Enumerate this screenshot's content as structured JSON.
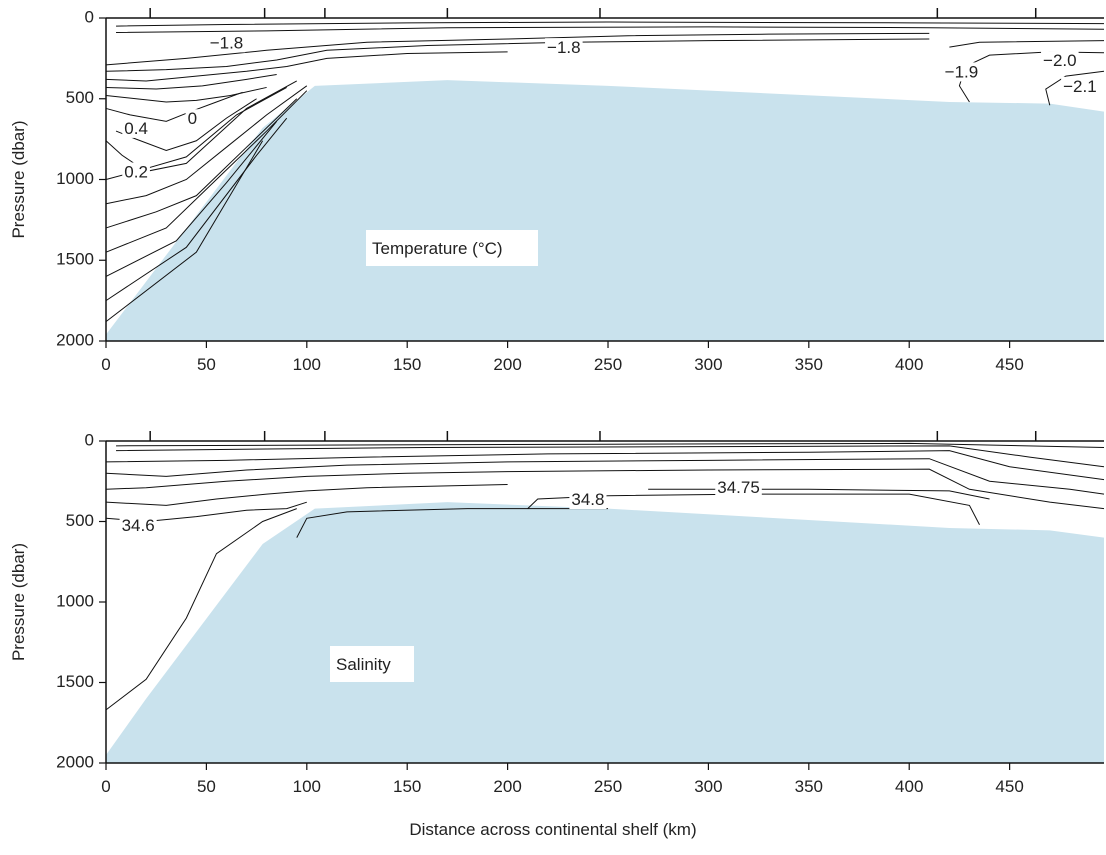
{
  "chart_data": [
    {
      "type": "contour",
      "panel_label": "Temperature (°C)",
      "xlabel": "",
      "ylabel": "Pressure (dbar)",
      "xlim": [
        0,
        497
      ],
      "ylim": [
        2000,
        0
      ],
      "x_ticks": [
        0,
        50,
        100,
        150,
        200,
        250,
        300,
        350,
        400,
        450
      ],
      "y_ticks": [
        0,
        500,
        1000,
        1500,
        2000
      ],
      "station_ticks": [
        22,
        79,
        109,
        170,
        246,
        414,
        463
      ],
      "bathymetry_color": "#c9e2ed",
      "bathymetry": [
        [
          0,
          1960
        ],
        [
          78,
          680
        ],
        [
          104,
          420
        ],
        [
          170,
          385
        ],
        [
          250,
          420
        ],
        [
          420,
          520
        ],
        [
          470,
          530
        ],
        [
          497,
          580
        ]
      ],
      "contour_labels": [
        {
          "text": "−1.8",
          "x": 60,
          "y": 160
        },
        {
          "text": "−1.8",
          "x": 228,
          "y": 190
        },
        {
          "text": "−1.9",
          "x": 426,
          "y": 340
        },
        {
          "text": "−2.0",
          "x": 475,
          "y": 270
        },
        {
          "text": "−2.1",
          "x": 485,
          "y": 430
        },
        {
          "text": "0.4",
          "x": 15,
          "y": 690
        },
        {
          "text": "0",
          "x": 43,
          "y": 630
        },
        {
          "text": "0.2",
          "x": 15,
          "y": 960
        }
      ],
      "contours": [
        [
          [
            0,
            290
          ],
          [
            40,
            250
          ],
          [
            80,
            200
          ],
          [
            130,
            150
          ],
          [
            200,
            130
          ],
          [
            260,
            110
          ],
          [
            330,
            100
          ],
          [
            410,
            95
          ]
        ],
        [
          [
            0,
            330
          ],
          [
            30,
            320
          ],
          [
            60,
            300
          ],
          [
            85,
            260
          ],
          [
            110,
            200
          ],
          [
            160,
            170
          ],
          [
            230,
            150
          ],
          [
            300,
            140
          ],
          [
            410,
            130
          ]
        ],
        [
          [
            0,
            380
          ],
          [
            20,
            390
          ],
          [
            45,
            360
          ],
          [
            70,
            330
          ],
          [
            90,
            300
          ],
          [
            110,
            250
          ],
          [
            150,
            220
          ],
          [
            200,
            210
          ]
        ],
        [
          [
            0,
            430
          ],
          [
            25,
            440
          ],
          [
            48,
            420
          ],
          [
            70,
            380
          ],
          [
            85,
            350
          ]
        ],
        [
          [
            0,
            480
          ],
          [
            15,
            500
          ],
          [
            30,
            520
          ],
          [
            45,
            510
          ],
          [
            62,
            480
          ],
          [
            80,
            430
          ]
        ],
        [
          [
            0,
            560
          ],
          [
            12,
            600
          ],
          [
            30,
            640
          ],
          [
            42,
            580
          ],
          [
            55,
            520
          ],
          [
            68,
            460
          ]
        ],
        [
          [
            5,
            700
          ],
          [
            15,
            750
          ],
          [
            30,
            820
          ],
          [
            45,
            760
          ],
          [
            60,
            620
          ],
          [
            75,
            500
          ]
        ],
        [
          [
            0,
            760
          ],
          [
            8,
            850
          ],
          [
            20,
            950
          ],
          [
            40,
            900
          ],
          [
            70,
            560
          ],
          [
            95,
            390
          ]
        ],
        [
          [
            0,
            1000
          ],
          [
            15,
            950
          ],
          [
            40,
            860
          ],
          [
            65,
            600
          ],
          [
            90,
            430
          ]
        ],
        [
          [
            0,
            1150
          ],
          [
            20,
            1100
          ],
          [
            40,
            1000
          ],
          [
            60,
            800
          ],
          [
            80,
            600
          ],
          [
            100,
            420
          ]
        ],
        [
          [
            0,
            1300
          ],
          [
            25,
            1200
          ],
          [
            45,
            1100
          ],
          [
            70,
            800
          ],
          [
            95,
            500
          ]
        ],
        [
          [
            0,
            1450
          ],
          [
            30,
            1300
          ],
          [
            55,
            1000
          ],
          [
            80,
            700
          ],
          [
            100,
            450
          ]
        ],
        [
          [
            0,
            1600
          ],
          [
            35,
            1380
          ],
          [
            60,
            1020
          ],
          [
            85,
            640
          ]
        ],
        [
          [
            0,
            1750
          ],
          [
            40,
            1420
          ],
          [
            75,
            850
          ],
          [
            90,
            620
          ]
        ],
        [
          [
            0,
            1880
          ],
          [
            45,
            1450
          ],
          [
            78,
            760
          ]
        ],
        [
          [
            5,
            50
          ],
          [
            60,
            40
          ],
          [
            150,
            30
          ],
          [
            250,
            25
          ],
          [
            400,
            30
          ],
          [
            497,
            35
          ]
        ],
        [
          [
            5,
            90
          ],
          [
            80,
            80
          ],
          [
            170,
            60
          ],
          [
            300,
            55
          ],
          [
            410,
            60
          ],
          [
            497,
            70
          ]
        ],
        [
          [
            420,
            180
          ],
          [
            435,
            150
          ],
          [
            497,
            140
          ]
        ],
        [
          [
            430,
            520
          ],
          [
            425,
            420
          ],
          [
            428,
            300
          ],
          [
            440,
            230
          ],
          [
            470,
            210
          ],
          [
            497,
            215
          ]
        ],
        [
          [
            470,
            540
          ],
          [
            468,
            440
          ],
          [
            478,
            360
          ],
          [
            497,
            330
          ]
        ]
      ]
    },
    {
      "type": "contour",
      "panel_label": "Salinity",
      "xlabel": "Distance across continental shelf (km)",
      "ylabel": "Pressure (dbar)",
      "xlim": [
        0,
        497
      ],
      "ylim": [
        2000,
        0
      ],
      "x_ticks": [
        0,
        50,
        100,
        150,
        200,
        250,
        300,
        350,
        400,
        450
      ],
      "y_ticks": [
        0,
        500,
        1000,
        1500,
        2000
      ],
      "station_ticks": [
        22,
        79,
        109,
        170,
        246,
        414,
        463
      ],
      "bathymetry_color": "#c9e2ed",
      "bathymetry": [
        [
          0,
          1950
        ],
        [
          20,
          1600
        ],
        [
          78,
          640
        ],
        [
          104,
          420
        ],
        [
          170,
          380
        ],
        [
          250,
          420
        ],
        [
          420,
          540
        ],
        [
          470,
          555
        ],
        [
          497,
          600
        ]
      ],
      "contour_labels": [
        {
          "text": "34.6",
          "x": 16,
          "y": 530
        },
        {
          "text": "34.8",
          "x": 240,
          "y": 370
        },
        {
          "text": "34.75",
          "x": 315,
          "y": 295
        }
      ],
      "contours": [
        [
          [
            0,
            1670
          ],
          [
            20,
            1480
          ],
          [
            40,
            1100
          ],
          [
            55,
            700
          ],
          [
            78,
            500
          ],
          [
            95,
            420
          ]
        ],
        [
          [
            0,
            480
          ],
          [
            20,
            500
          ],
          [
            45,
            470
          ],
          [
            70,
            430
          ],
          [
            90,
            420
          ],
          [
            100,
            380
          ]
        ],
        [
          [
            0,
            380
          ],
          [
            30,
            400
          ],
          [
            55,
            360
          ],
          [
            80,
            330
          ],
          [
            100,
            310
          ],
          [
            130,
            290
          ],
          [
            200,
            270
          ]
        ],
        [
          [
            0,
            300
          ],
          [
            20,
            290
          ],
          [
            60,
            250
          ],
          [
            100,
            220
          ],
          [
            150,
            200
          ],
          [
            200,
            190
          ],
          [
            300,
            180
          ],
          [
            410,
            175
          ],
          [
            430,
            300
          ],
          [
            470,
            380
          ],
          [
            497,
            420
          ]
        ],
        [
          [
            0,
            200
          ],
          [
            30,
            220
          ],
          [
            70,
            180
          ],
          [
            120,
            150
          ],
          [
            200,
            130
          ],
          [
            300,
            120
          ],
          [
            410,
            110
          ],
          [
            440,
            250
          ],
          [
            480,
            300
          ],
          [
            497,
            330
          ]
        ],
        [
          [
            0,
            130
          ],
          [
            60,
            120
          ],
          [
            130,
            100
          ],
          [
            220,
            80
          ],
          [
            350,
            70
          ],
          [
            420,
            60
          ],
          [
            450,
            160
          ],
          [
            497,
            240
          ]
        ],
        [
          [
            5,
            60
          ],
          [
            80,
            50
          ],
          [
            160,
            40
          ],
          [
            300,
            35
          ],
          [
            420,
            30
          ],
          [
            460,
            100
          ],
          [
            497,
            160
          ]
        ],
        [
          [
            5,
            30
          ],
          [
            120,
            25
          ],
          [
            250,
            20
          ],
          [
            400,
            15
          ],
          [
            497,
            40
          ]
        ],
        [
          [
            95,
            600
          ],
          [
            100,
            480
          ],
          [
            120,
            440
          ],
          [
            180,
            420
          ],
          [
            250,
            420
          ]
        ],
        [
          [
            210,
            420
          ],
          [
            215,
            360
          ],
          [
            250,
            340
          ],
          [
            320,
            330
          ],
          [
            400,
            330
          ],
          [
            430,
            400
          ],
          [
            435,
            520
          ]
        ],
        [
          [
            270,
            300
          ],
          [
            350,
            300
          ],
          [
            420,
            310
          ],
          [
            440,
            360
          ]
        ]
      ]
    }
  ]
}
